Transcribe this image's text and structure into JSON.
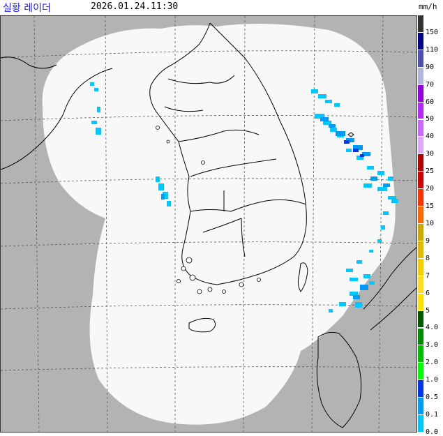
{
  "header": {
    "title": "실황 레이더",
    "timestamp": "2026.01.24.11:30",
    "unit": "mm/h"
  },
  "legend": [
    {
      "label": "150",
      "color": "#333333"
    },
    {
      "label": "110",
      "color": "#000390"
    },
    {
      "label": "90",
      "color": "#4c4eb1"
    },
    {
      "label": "70",
      "color": "#b3b4de"
    },
    {
      "label": "60",
      "color": "#9300e4"
    },
    {
      "label": "50",
      "color": "#b329ff"
    },
    {
      "label": "40",
      "color": "#c969ff"
    },
    {
      "label": "30",
      "color": "#e0a9ff"
    },
    {
      "label": "25",
      "color": "#b40000"
    },
    {
      "label": "20",
      "color": "#d20000"
    },
    {
      "label": "15",
      "color": "#ff3200"
    },
    {
      "label": "10",
      "color": "#ff6600"
    },
    {
      "label": "9",
      "color": "#ccaa00"
    },
    {
      "label": "8",
      "color": "#e0b900"
    },
    {
      "label": "7",
      "color": "#f9cd00"
    },
    {
      "label": "6",
      "color": "#ffdc1f"
    },
    {
      "label": "5",
      "color": "#ffe100"
    },
    {
      "label": "4.0",
      "color": "#005a00"
    },
    {
      "label": "3.0",
      "color": "#008c00"
    },
    {
      "label": "2.0",
      "color": "#00be00"
    },
    {
      "label": "1.0",
      "color": "#00ff00"
    },
    {
      "label": "0.5",
      "color": "#0033f5"
    },
    {
      "label": "0.1",
      "color": "#009bf5"
    },
    {
      "label": "0.0",
      "color": "#00c8ff"
    }
  ],
  "colors": {
    "background_land": "#b3b3b3",
    "coverage": "#f8f8f8",
    "grid": "#555555",
    "echo_light": "#00c8ff",
    "echo_mid": "#009bf5",
    "echo_strong": "#0033f5"
  }
}
